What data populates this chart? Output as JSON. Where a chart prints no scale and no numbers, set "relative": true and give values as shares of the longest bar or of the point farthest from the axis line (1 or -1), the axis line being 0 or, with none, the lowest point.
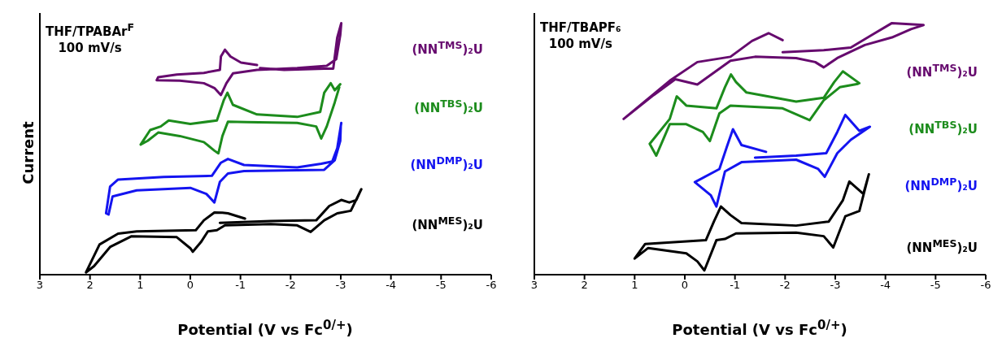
{
  "chart_data": [
    {
      "type": "line",
      "relative": true,
      "xlabel": "Potential (V vs Fc$^{0/+}$)",
      "ylabel": "Current",
      "xlim": [
        3,
        -6
      ],
      "xticks": [
        3,
        2,
        1,
        0,
        -1,
        -2,
        -3,
        -4,
        -5,
        -6
      ],
      "annotations": [
        "THF/TPABAr$^{F}$",
        "100 mV/s"
      ],
      "series": [
        {
          "name": "(NN$^{TMS}$)₂U",
          "color": "#660a6e",
          "x": [
            -1.33,
            -1.01,
            -0.8,
            -0.69,
            -0.61,
            -0.59,
            -0.27,
            0.27,
            0.64,
            0.67,
            0.21,
            -0.27,
            -0.48,
            -0.61,
            -0.72,
            -0.85,
            -1.33,
            -2.13,
            -2.72,
            -2.91,
            -2.99,
            -3.01,
            -2.93,
            -2.85,
            -2.67,
            -1.87,
            -1.39
          ],
          "values": [
            0.833,
            0.843,
            0.867,
            0.894,
            0.867,
            0.814,
            0.802,
            0.795,
            0.785,
            0.773,
            0.771,
            0.761,
            0.742,
            0.714,
            0.761,
            0.8,
            0.814,
            0.821,
            0.83,
            0.857,
            0.953,
            1.0,
            0.943,
            0.819,
            0.819,
            0.814,
            0.821
          ]
        },
        {
          "name": "(NN$^{TBS}$)₂U",
          "color": "#1c8c1c",
          "x": [
            -2.99,
            -2.88,
            -2.8,
            -2.67,
            -2.59,
            -2.13,
            -1.33,
            -0.85,
            -0.74,
            -0.67,
            -0.53,
            0.0,
            0.43,
            0.59,
            0.8,
            0.99,
            0.85,
            0.64,
            0.21,
            -0.27,
            -0.48,
            -0.56,
            -0.64,
            -0.75,
            -1.12,
            -2.13,
            -2.51,
            -2.61,
            -2.72,
            -2.88,
            -2.97
          ],
          "values": [
            0.757,
            0.733,
            0.761,
            0.723,
            0.647,
            0.627,
            0.637,
            0.675,
            0.723,
            0.695,
            0.613,
            0.599,
            0.613,
            0.589,
            0.575,
            0.517,
            0.532,
            0.565,
            0.551,
            0.527,
            0.493,
            0.482,
            0.551,
            0.608,
            0.606,
            0.603,
            0.589,
            0.541,
            0.589,
            0.685,
            0.745
          ]
        },
        {
          "name": "(NN$^{DMP}$)₂U",
          "color": "#1414f0",
          "x": [
            -3.01,
            -2.93,
            -2.83,
            -2.61,
            -2.13,
            -1.07,
            -0.75,
            -0.61,
            -0.43,
            0.53,
            1.44,
            1.6,
            1.68,
            1.63,
            1.55,
            1.07,
            0.0,
            -0.32,
            -0.48,
            -0.59,
            -0.75,
            -1.07,
            -2.13,
            -2.67,
            -2.88,
            -2.99,
            -3.0
          ],
          "values": [
            0.603,
            0.503,
            0.45,
            0.441,
            0.426,
            0.436,
            0.46,
            0.445,
            0.393,
            0.388,
            0.378,
            0.35,
            0.244,
            0.239,
            0.311,
            0.335,
            0.345,
            0.321,
            0.287,
            0.369,
            0.402,
            0.412,
            0.415,
            0.417,
            0.455,
            0.532,
            0.59
          ]
        },
        {
          "name": "(NN$^{MES}$)₂U",
          "color": "#000000",
          "x": [
            -1.09,
            -0.75,
            -0.64,
            -0.48,
            -0.27,
            -0.11,
            1.07,
            1.44,
            1.81,
            2.08,
            1.92,
            1.6,
            1.17,
            0.27,
            0.0,
            -0.05,
            -0.21,
            -0.35,
            -0.53,
            -0.69,
            -1.6,
            -2.13,
            -2.4,
            -2.67,
            -2.93,
            -3.2,
            -3.41,
            -3.31,
            -3.17,
            -3.01,
            -2.77,
            -2.51,
            -1.6,
            -0.59
          ],
          "values": [
            0.223,
            0.244,
            0.246,
            0.247,
            0.216,
            0.177,
            0.172,
            0.163,
            0.12,
            0.009,
            0.034,
            0.11,
            0.153,
            0.149,
            0.105,
            0.091,
            0.129,
            0.172,
            0.177,
            0.196,
            0.201,
            0.196,
            0.17,
            0.216,
            0.244,
            0.254,
            0.34,
            0.297,
            0.287,
            0.297,
            0.273,
            0.216,
            0.213,
            0.206
          ]
        }
      ]
    },
    {
      "type": "line",
      "relative": true,
      "xlabel": "Potential (V vs Fc$^{0/+}$)",
      "xlim": [
        3,
        -6
      ],
      "xticks": [
        3,
        2,
        1,
        0,
        -1,
        -2,
        -3,
        -4,
        -5,
        -6
      ],
      "annotations": [
        "THF/TBAPF₆",
        "100 mV/s"
      ],
      "series": [
        {
          "name": "(NN$^{TMS}$)₂U",
          "color": "#660a6e",
          "x": [
            -1.95,
            -2.77,
            -3.31,
            -3.75,
            -4.13,
            -4.76,
            -4.51,
            -4.13,
            -3.59,
            -3.04,
            -2.77,
            -2.6,
            -2.22,
            -1.4,
            -0.91,
            -0.25,
            0.19,
            0.62,
            1.22,
            0.3,
            -0.25,
            -0.91,
            -1.34,
            -1.67,
            -1.95
          ],
          "values": [
            0.884,
            0.892,
            0.903,
            0.955,
            1.0,
            0.992,
            0.976,
            0.943,
            0.913,
            0.861,
            0.824,
            0.845,
            0.861,
            0.866,
            0.85,
            0.756,
            0.777,
            0.714,
            0.619,
            0.771,
            0.845,
            0.866,
            0.929,
            0.96,
            0.932
          ]
        },
        {
          "name": "(NN$^{TBS}$)₂U",
          "color": "#1c8c1c",
          "x": [
            -3.48,
            -3.15,
            -2.98,
            -2.77,
            -2.22,
            -1.23,
            -1.02,
            -0.92,
            -0.8,
            -0.63,
            -0.03,
            0.16,
            0.3,
            0.7,
            0.57,
            0.3,
            -0.03,
            -0.36,
            -0.5,
            -0.69,
            -0.91,
            -1.95,
            -2.49,
            -2.77,
            -3.09,
            -3.45
          ],
          "values": [
            0.761,
            0.808,
            0.766,
            0.703,
            0.688,
            0.724,
            0.766,
            0.796,
            0.745,
            0.661,
            0.672,
            0.709,
            0.619,
            0.52,
            0.473,
            0.598,
            0.598,
            0.567,
            0.531,
            0.641,
            0.672,
            0.661,
            0.614,
            0.693,
            0.745,
            0.758
          ]
        },
        {
          "name": "(NN$^{DMP}$)₂U",
          "color": "#1414f0",
          "x": [
            -1.62,
            -1.13,
            -0.96,
            -0.85,
            -0.69,
            -0.2,
            -0.52,
            -0.63,
            -0.8,
            -1.13,
            -2.22,
            -2.66,
            -2.79,
            -3.04,
            -3.31,
            -3.69,
            -3.48,
            -3.2,
            -3.04,
            -2.82,
            -2.22,
            -1.4
          ],
          "values": [
            0.488,
            0.515,
            0.578,
            0.515,
            0.42,
            0.368,
            0.315,
            0.271,
            0.41,
            0.447,
            0.457,
            0.42,
            0.389,
            0.483,
            0.536,
            0.588,
            0.572,
            0.635,
            0.567,
            0.483,
            0.473,
            0.465
          ]
        },
        {
          "name": "(NN$^{MES}$)₂U",
          "color": "#000000",
          "x": [
            -3.67,
            -3.56,
            -3.28,
            -3.15,
            -2.87,
            -2.22,
            -1.13,
            -0.91,
            -0.72,
            -0.58,
            -0.42,
            0.79,
            1.0,
            0.73,
            -0.03,
            -0.25,
            -0.39,
            -0.63,
            -0.8,
            -1.02,
            -2.22,
            -2.77,
            -2.96,
            -3.2,
            -3.48,
            -3.65
          ],
          "values": [
            0.399,
            0.321,
            0.37,
            0.295,
            0.211,
            0.195,
            0.205,
            0.237,
            0.271,
            0.211,
            0.137,
            0.122,
            0.064,
            0.106,
            0.085,
            0.053,
            0.017,
            0.137,
            0.142,
            0.164,
            0.167,
            0.153,
            0.108,
            0.232,
            0.253,
            0.385
          ]
        }
      ]
    }
  ]
}
